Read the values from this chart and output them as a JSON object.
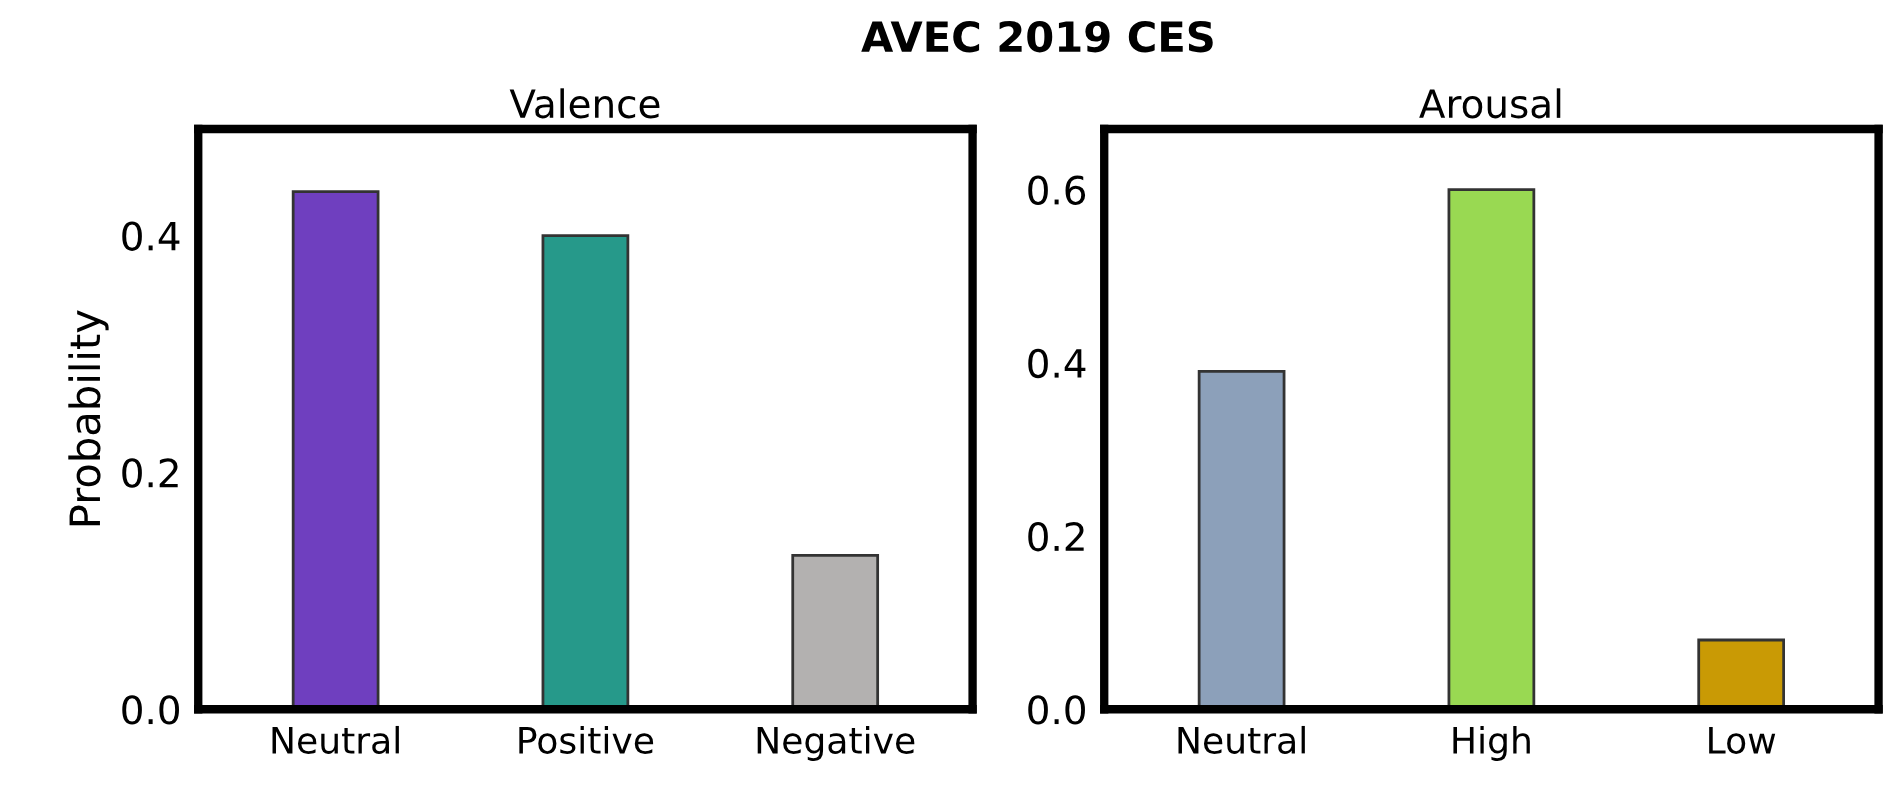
{
  "chart_data": [
    {
      "type": "bar",
      "title": "Valence",
      "ylabel": "Probability",
      "annotations": [
        "AVEC 2019 CES"
      ],
      "categories": [
        "Neutral",
        "Positive",
        "Negative"
      ],
      "values": [
        0.437,
        0.4,
        0.13
      ],
      "colors": [
        "#6f3fbf",
        "#26998a",
        "#b3b1b0"
      ],
      "ylim": [
        0,
        0.49
      ],
      "yticks": [
        {
          "value": 0,
          "label": "0.0"
        },
        0.2,
        0.4
      ],
      "grid": false
    },
    {
      "type": "bar",
      "title": "Arousal",
      "categories": [
        "Neutral",
        "High",
        "Low"
      ],
      "values": [
        0.39,
        0.6,
        0.08
      ],
      "colors": [
        "#8ca0ba",
        "#99d952",
        "#c99a05"
      ],
      "ylim": [
        0,
        0.67
      ],
      "yticks": [
        {
          "value": 0,
          "label": "0.0"
        },
        0.2,
        0.4,
        0.6
      ],
      "grid": false
    }
  ]
}
